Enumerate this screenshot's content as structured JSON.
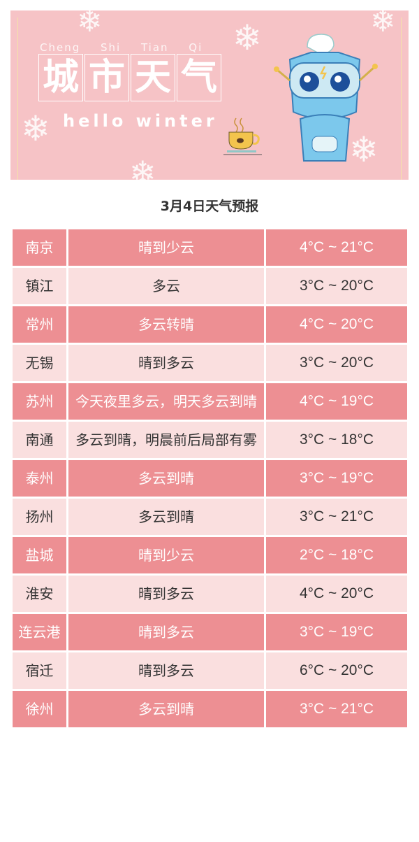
{
  "banner": {
    "pinyin": "Cheng Shi Tian Qi",
    "title_chars": [
      "城",
      "市",
      "天",
      "气"
    ],
    "subtitle": "hello winter"
  },
  "forecast_title": "3月4日天气预报",
  "colors": {
    "dark_row": "#ed8f93",
    "light_row": "#fadfdf",
    "banner": "#f6c3c6"
  },
  "rows": [
    {
      "city": "南京",
      "weather": "晴到少云",
      "temp": "4°C ~ 21°C"
    },
    {
      "city": "镇江",
      "weather": "多云",
      "temp": "3°C ~ 20°C"
    },
    {
      "city": "常州",
      "weather": "多云转晴",
      "temp": "4°C ~ 20°C"
    },
    {
      "city": "无锡",
      "weather": "晴到多云",
      "temp": "3°C ~ 20°C"
    },
    {
      "city": "苏州",
      "weather": "今天夜里多云，明天多云到晴",
      "temp": "4°C ~ 19°C"
    },
    {
      "city": "南通",
      "weather": "多云到晴，明晨前后局部有雾",
      "temp": "3°C ~ 18°C"
    },
    {
      "city": "泰州",
      "weather": "多云到晴",
      "temp": "3°C ~ 19°C"
    },
    {
      "city": "扬州",
      "weather": "多云到晴",
      "temp": "3°C ~ 21°C"
    },
    {
      "city": "盐城",
      "weather": "晴到少云",
      "temp": "2°C ~ 18°C"
    },
    {
      "city": "淮安",
      "weather": "晴到多云",
      "temp": "4°C ~ 20°C"
    },
    {
      "city": "连云港",
      "weather": "晴到多云",
      "temp": "3°C ~ 19°C"
    },
    {
      "city": "宿迁",
      "weather": "晴到多云",
      "temp": "6°C ~ 20°C"
    },
    {
      "city": "徐州",
      "weather": "多云到晴",
      "temp": "3°C ~ 21°C"
    }
  ]
}
